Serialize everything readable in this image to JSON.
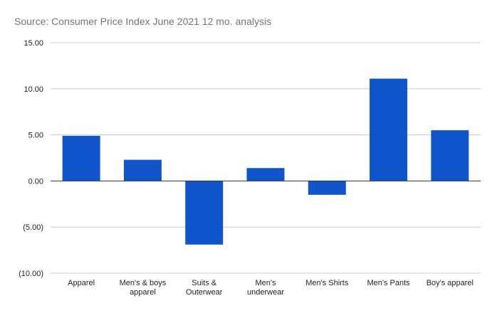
{
  "chart_data": {
    "type": "bar",
    "title": "",
    "subtitle": "Source: Consumer Price Index June 2021 12 mo. analysis",
    "xlabel": "",
    "ylabel": "",
    "categories": [
      [
        "Apparel"
      ],
      [
        "Men's & boys",
        "apparel"
      ],
      [
        "Suits &",
        "Outerwear"
      ],
      [
        "Men's",
        "underwear"
      ],
      [
        "Men's Shirts"
      ],
      [
        "Men's Pants"
      ],
      [
        "Boy's apparel"
      ]
    ],
    "values": [
      4.9,
      2.3,
      -6.9,
      1.4,
      -1.5,
      11.1,
      5.5
    ],
    "ylim": [
      -10,
      15
    ],
    "yticks": [
      15,
      10,
      5,
      0,
      -5,
      -10
    ],
    "ytick_labels": [
      "15.00",
      "10.00",
      "5.00",
      "0.00",
      "(5.00)",
      "(10.00)"
    ],
    "grid": true,
    "legend": "none",
    "bar_color": "#1155cc",
    "grid_color": "#cccccc",
    "zero_line_color": "#333333"
  }
}
